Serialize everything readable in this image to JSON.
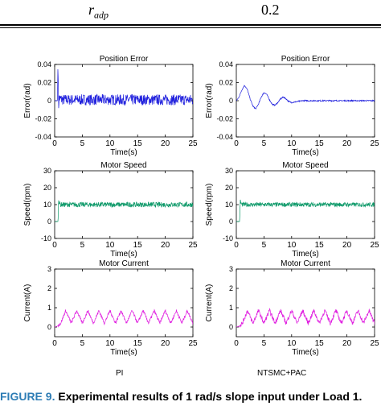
{
  "table": {
    "param_symbol": "r",
    "param_subscript": "adp",
    "value": "0.2"
  },
  "columns": {
    "left": "PI",
    "right": "NTSMC+PAC"
  },
  "caption": {
    "label": "FIGURE 9.",
    "text": "Experimental results of 1 rad/s slope input under Load 1."
  },
  "chart_data": [
    {
      "type": "line",
      "title": "Position Error",
      "xlabel": "Time(s)",
      "ylabel": "Error(rad)",
      "xlim": [
        0,
        25
      ],
      "ylim": [
        -0.04,
        0.04
      ],
      "xticks": [
        "0",
        "5",
        "10",
        "15",
        "20",
        "25"
      ],
      "yticks": [
        "-0.04",
        "-0.02",
        "0",
        "0.02",
        "0.04"
      ],
      "grid": false,
      "series": [
        {
          "color": "#1f1fdd",
          "x": [
            0,
            0.3,
            0.5,
            0.6,
            0.65,
            0.7,
            0.8,
            1,
            1.5,
            2,
            3,
            5,
            10,
            15,
            20,
            25
          ],
          "y": [
            0,
            0,
            0,
            0.045,
            0.02,
            -0.008,
            0.003,
            0.002,
            0.001,
            0.001,
            0.001,
            0.001,
            0.001,
            0.001,
            0.001,
            0.001
          ],
          "noise": 0.006
        }
      ]
    },
    {
      "type": "line",
      "title": "Position Error",
      "xlabel": "Time(s)",
      "ylabel": "Error(rad)",
      "xlim": [
        0,
        25
      ],
      "ylim": [
        -0.04,
        0.04
      ],
      "xticks": [
        "0",
        "5",
        "10",
        "15",
        "20",
        "25"
      ],
      "yticks": [
        "-0.04",
        "-0.02",
        "0",
        "0.02",
        "0.04"
      ],
      "grid": false,
      "series": [
        {
          "color": "#1f1fdd",
          "x": [
            0,
            0.5,
            1,
            1.5,
            2,
            2.5,
            3,
            3.5,
            4,
            4.5,
            5,
            5.5,
            6,
            6.5,
            7,
            7.5,
            8,
            8.5,
            9,
            9.5,
            10,
            11,
            12,
            13,
            15,
            20,
            25
          ],
          "y": [
            0,
            0.004,
            0.012,
            0.017,
            0.012,
            0.002,
            -0.006,
            -0.009,
            -0.004,
            0.004,
            0.009,
            0.007,
            0.001,
            -0.004,
            -0.005,
            -0.002,
            0.002,
            0.004,
            0.002,
            -0.001,
            -0.002,
            -0.001,
            0,
            0,
            0,
            0,
            0
          ],
          "noise": 0.0007
        }
      ]
    },
    {
      "type": "line",
      "title": "Motor Speed",
      "xlabel": "Time(s)",
      "ylabel": "Speed(rpm)",
      "xlim": [
        0,
        25
      ],
      "ylim": [
        -10,
        30
      ],
      "xticks": [
        "0",
        "5",
        "10",
        "15",
        "20",
        "25"
      ],
      "yticks": [
        "-10",
        "0",
        "10",
        "20",
        "30"
      ],
      "grid": false,
      "series": [
        {
          "color": "#0f9a6a",
          "x": [
            0,
            0.5,
            0.6,
            0.7,
            0.9,
            1,
            5,
            10,
            15,
            20,
            25
          ],
          "y": [
            0,
            0,
            0,
            13,
            11,
            10,
            10,
            10,
            10,
            10,
            10
          ],
          "noise": 1.5
        }
      ]
    },
    {
      "type": "line",
      "title": "Motor Speed",
      "xlabel": "Time(s)",
      "ylabel": "Speed(rpm)",
      "xlim": [
        0,
        25
      ],
      "ylim": [
        -10,
        30
      ],
      "xticks": [
        "0",
        "5",
        "10",
        "15",
        "20",
        "25"
      ],
      "yticks": [
        "-10",
        "0",
        "10",
        "20",
        "30"
      ],
      "grid": false,
      "series": [
        {
          "color": "#0f9a6a",
          "x": [
            0,
            0.5,
            0.6,
            0.7,
            0.9,
            1,
            5,
            10,
            15,
            20,
            25
          ],
          "y": [
            0,
            0,
            0,
            12,
            10.5,
            10,
            10,
            10,
            10,
            10,
            10
          ],
          "noise": 1.3
        }
      ]
    },
    {
      "type": "line",
      "title": "Motor Current",
      "xlabel": "Time(s)",
      "ylabel": "Current(A)",
      "xlim": [
        0,
        25
      ],
      "ylim": [
        -0.5,
        3
      ],
      "xticks": [
        "0",
        "5",
        "10",
        "15",
        "20",
        "25"
      ],
      "yticks": [
        "0",
        "1",
        "2",
        "3"
      ],
      "grid": false,
      "series": [
        {
          "color": "#e020e0",
          "x": [
            0,
            0.5,
            1.1,
            2,
            3,
            4,
            5,
            6,
            7,
            8,
            9,
            10,
            11,
            12,
            13,
            14,
            15,
            16,
            17,
            18,
            19,
            20,
            21,
            22,
            23,
            24,
            25
          ],
          "y": [
            0,
            0.05,
            0.2,
            0.85,
            0.2,
            0.85,
            0.2,
            0.85,
            0.2,
            0.85,
            0.2,
            0.85,
            0.2,
            0.85,
            0.2,
            0.85,
            0.2,
            0.85,
            0.2,
            0.85,
            0.2,
            0.85,
            0.2,
            0.85,
            0.2,
            0.85,
            0.2
          ],
          "noise": 0.08
        }
      ]
    },
    {
      "type": "line",
      "title": "Motor Current",
      "xlabel": "Time(s)",
      "ylabel": "Current(A)",
      "xlim": [
        0,
        25
      ],
      "ylim": [
        -0.5,
        3
      ],
      "xticks": [
        "0",
        "5",
        "10",
        "15",
        "20",
        "25"
      ],
      "yticks": [
        "0",
        "1",
        "2",
        "3"
      ],
      "grid": false,
      "series": [
        {
          "color": "#e020e0",
          "x": [
            0,
            0.5,
            1.1,
            2,
            3,
            4,
            5,
            6,
            7,
            8,
            9,
            10,
            11,
            12,
            13,
            14,
            15,
            16,
            17,
            18,
            19,
            20,
            21,
            22,
            23,
            24,
            25
          ],
          "y": [
            0,
            0.05,
            0.2,
            0.85,
            0.2,
            0.85,
            0.2,
            0.85,
            0.2,
            0.85,
            0.2,
            0.85,
            0.2,
            0.85,
            0.2,
            0.85,
            0.2,
            0.85,
            0.2,
            0.85,
            0.2,
            0.85,
            0.2,
            0.85,
            0.2,
            0.85,
            0.2
          ],
          "noise": 0.12
        }
      ]
    }
  ]
}
